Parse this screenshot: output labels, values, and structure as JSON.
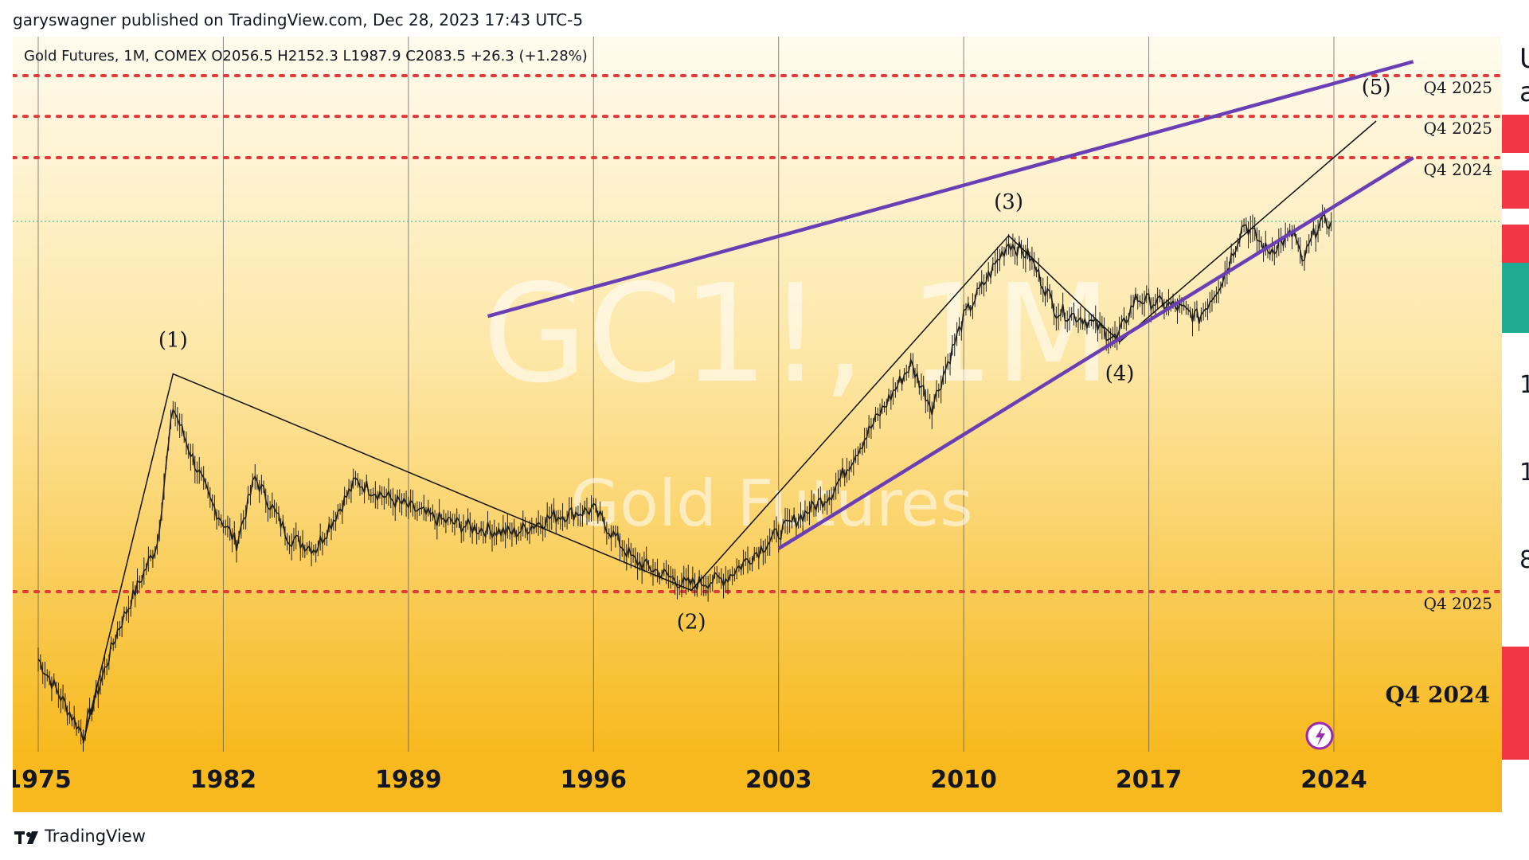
{
  "header": {
    "publish_line": "garyswagner published on TradingView.com, Dec 28, 2023 17:43 UTC-5"
  },
  "legend": {
    "symbol_line": "Gold Futures, 1M, COMEX",
    "open": "O2056.5",
    "high": "H2152.3",
    "low": "L1987.9",
    "close": "C2083.5",
    "change": "+26.3 (+1.28%)"
  },
  "watermark": {
    "symbol": "GC1!, 1M",
    "name": "Gold Futures"
  },
  "footer": {
    "brand": "TradingView"
  },
  "price_scale": {
    "top_text": [
      "U",
      "a"
    ],
    "partial_labels": [
      "1",
      "1",
      "8"
    ]
  },
  "chart_data": {
    "type": "line",
    "title": "Gold Futures, 1M, COMEX",
    "x_axis_ticks": [
      "1975",
      "1982",
      "1989",
      "1996",
      "2003",
      "2010",
      "2017",
      "2024"
    ],
    "y_scale": "log",
    "y_range": [
      100,
      6000
    ],
    "grid": "vertical lines at year ticks",
    "series": [
      {
        "name": "GC1!",
        "values": [
          [
            1975.0,
            170
          ],
          [
            1976.7,
            110
          ],
          [
            1978.0,
            200
          ],
          [
            1979.5,
            330
          ],
          [
            1980.1,
            720
          ],
          [
            1980.6,
            590
          ],
          [
            1981.5,
            420
          ],
          [
            1982.5,
            330
          ],
          [
            1983.2,
            480
          ],
          [
            1984.5,
            340
          ],
          [
            1985.5,
            320
          ],
          [
            1987.0,
            470
          ],
          [
            1988.5,
            420
          ],
          [
            1990.0,
            380
          ],
          [
            1991.5,
            360
          ],
          [
            1993.0,
            350
          ],
          [
            1994.5,
            385
          ],
          [
            1996.0,
            400
          ],
          [
            1997.5,
            300
          ],
          [
            1999.5,
            260
          ],
          [
            2001.0,
            270
          ],
          [
            2003.0,
            350
          ],
          [
            2005.0,
            440
          ],
          [
            2006.5,
            640
          ],
          [
            2008.0,
            920
          ],
          [
            2008.8,
            720
          ],
          [
            2010.0,
            1200
          ],
          [
            2011.7,
            1850
          ],
          [
            2012.5,
            1700
          ],
          [
            2013.5,
            1250
          ],
          [
            2014.5,
            1200
          ],
          [
            2015.8,
            1060
          ],
          [
            2016.5,
            1340
          ],
          [
            2018.0,
            1280
          ],
          [
            2018.9,
            1200
          ],
          [
            2019.8,
            1500
          ],
          [
            2020.6,
            2070
          ],
          [
            2021.5,
            1750
          ],
          [
            2022.5,
            1950
          ],
          [
            2022.8,
            1630
          ],
          [
            2023.4,
            2050
          ],
          [
            2023.9,
            2083.5
          ]
        ]
      },
      {
        "name": "",
        "values": []
      }
    ],
    "wave_labels": [
      "(1)",
      "(2)",
      "(3)",
      "(4)",
      "(5)"
    ],
    "wave_points": [
      [
        1976.7,
        105
      ],
      [
        1980.1,
        870
      ],
      [
        1999.7,
        252
      ],
      [
        2011.7,
        1920
      ],
      [
        2015.9,
        1045
      ],
      [
        2025.6,
        3700
      ]
    ],
    "channel": {
      "upper": [
        [
          1992.0,
          1210
        ],
        [
          2027.0,
          5200
        ]
      ],
      "lower": [
        [
          2003.0,
          320
        ],
        [
          2027.0,
          3000
        ]
      ]
    },
    "horizontal_levels": [
      {
        "label": "Q4 2025",
        "value": 4800
      },
      {
        "label": "Q4 2025",
        "value": 3800
      },
      {
        "label": "Q4 2024",
        "value": 3000
      },
      {
        "label": "Q4 2025",
        "value": 250
      }
    ],
    "bold_annotation": "Q4 2024",
    "last_price": 2083.5,
    "colors": {
      "background_top": "#fffbee",
      "background_bottom": "#f7b91e",
      "candles": "#1f1f1f",
      "channel": "#6a3fb5",
      "level_lines": "#e23b3b",
      "red_box": "#f23645",
      "green_box": "#22ab94",
      "grid": "#555555"
    }
  }
}
